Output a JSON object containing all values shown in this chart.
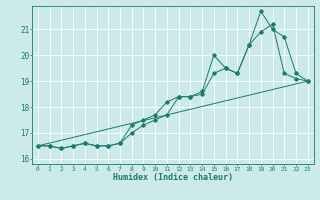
{
  "title": "",
  "xlabel": "Humidex (Indice chaleur)",
  "x": [
    0,
    1,
    2,
    3,
    4,
    5,
    6,
    7,
    8,
    9,
    10,
    11,
    12,
    13,
    14,
    15,
    16,
    17,
    18,
    19,
    20,
    21,
    22,
    23
  ],
  "line1": [
    16.5,
    16.5,
    16.4,
    16.5,
    16.6,
    16.5,
    16.5,
    16.6,
    17.0,
    17.3,
    17.5,
    17.7,
    18.4,
    18.4,
    18.5,
    19.3,
    19.5,
    19.3,
    20.4,
    20.9,
    21.2,
    19.3,
    19.1,
    19.0
  ],
  "line2": [
    16.5,
    16.5,
    16.4,
    16.5,
    16.6,
    16.5,
    16.5,
    16.6,
    17.3,
    17.5,
    17.7,
    18.2,
    18.4,
    18.4,
    18.6,
    20.0,
    19.5,
    19.3,
    20.4,
    21.7,
    21.0,
    20.7,
    19.3,
    19.0
  ],
  "line3_x": [
    0,
    23
  ],
  "line3_y": [
    16.5,
    19.0
  ],
  "ylim": [
    15.8,
    21.9
  ],
  "xlim": [
    -0.5,
    23.5
  ],
  "yticks": [
    16,
    17,
    18,
    19,
    20,
    21
  ],
  "xticks": [
    0,
    1,
    2,
    3,
    4,
    5,
    6,
    7,
    8,
    9,
    10,
    11,
    12,
    13,
    14,
    15,
    16,
    17,
    18,
    19,
    20,
    21,
    22,
    23
  ],
  "color": "#1a7a6e",
  "bg_color": "#cceaea",
  "grid_color": "#ffffff",
  "fig_bg": "#cceaea"
}
